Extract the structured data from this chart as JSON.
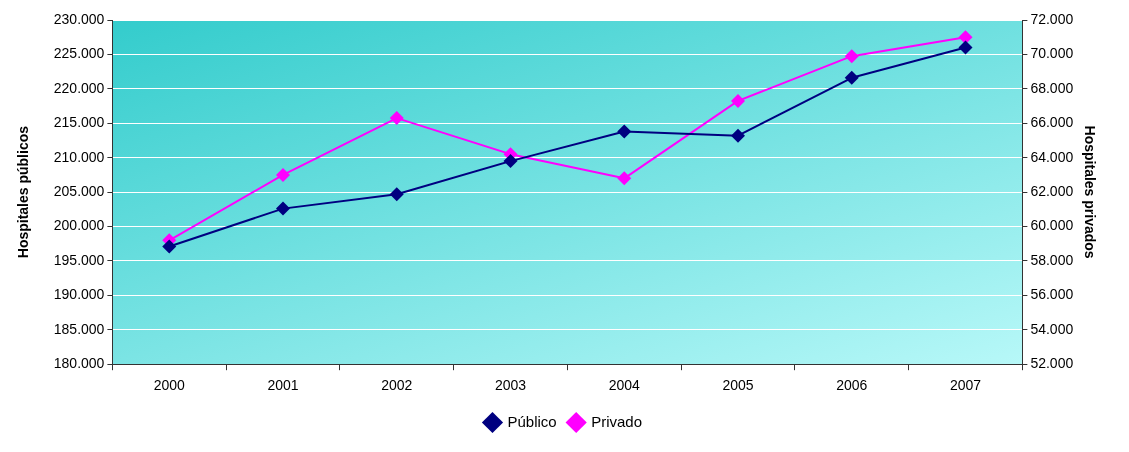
{
  "chart_data": {
    "type": "line",
    "ylabel": "Hospitales públicos",
    "y2label": "Hospitales privados",
    "categories": [
      "2000",
      "2001",
      "2002",
      "2003",
      "2004",
      "2005",
      "2006",
      "2007"
    ],
    "series": [
      {
        "name": "Público",
        "color": "#000080",
        "values": [
          197100,
          202600,
          204700,
          209500,
          213800,
          213200,
          221600,
          226000
        ]
      },
      {
        "name": "Privado",
        "color": "#ff00ff",
        "axis": "y2",
        "values": [
          59200,
          63000,
          66300,
          64200,
          62800,
          67300,
          69900,
          71000
        ]
      }
    ],
    "ylim": [
      180000,
      230000
    ],
    "yticks": [
      {
        "value": 180000,
        "label": "180.000"
      },
      {
        "value": 185000,
        "label": "185.000"
      },
      {
        "value": 190000,
        "label": "190.000"
      },
      {
        "value": 195000,
        "label": "195.000"
      },
      {
        "value": 200000,
        "label": "200.000"
      },
      {
        "value": 205000,
        "label": "205.000"
      },
      {
        "value": 210000,
        "label": "210.000"
      },
      {
        "value": 215000,
        "label": "215.000"
      },
      {
        "value": 220000,
        "label": "220.000"
      },
      {
        "value": 225000,
        "label": "225.000"
      },
      {
        "value": 230000,
        "label": "230.000"
      }
    ],
    "y2lim": [
      52000,
      72000
    ],
    "y2ticks": [
      {
        "value": 52000,
        "label": "52.000"
      },
      {
        "value": 54000,
        "label": "54.000"
      },
      {
        "value": 56000,
        "label": "56.000"
      },
      {
        "value": 58000,
        "label": "58.000"
      },
      {
        "value": 60000,
        "label": "60.000"
      },
      {
        "value": 62000,
        "label": "62.000"
      },
      {
        "value": 64000,
        "label": "64.000"
      },
      {
        "value": 66000,
        "label": "66.000"
      },
      {
        "value": 68000,
        "label": "68.000"
      },
      {
        "value": 70000,
        "label": "70.000"
      },
      {
        "value": 72000,
        "label": "72.000"
      }
    ],
    "grid": "y",
    "legend": "bottom",
    "marker": "diamond",
    "line_style": "solid"
  }
}
